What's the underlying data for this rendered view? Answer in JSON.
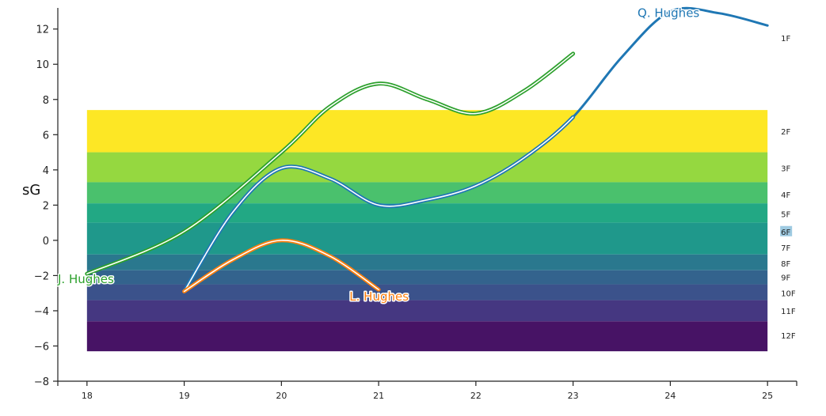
{
  "chart_data": {
    "type": "line",
    "title": "",
    "xlabel": "",
    "ylabel": "sG",
    "xlim": [
      17.7,
      25.3
    ],
    "ylim": [
      -8,
      13.2
    ],
    "xticks": [
      18,
      19,
      20,
      21,
      22,
      23,
      24,
      25
    ],
    "yticks": [
      -8,
      -6,
      -4,
      -2,
      0,
      2,
      4,
      6,
      8,
      10,
      12
    ],
    "grid": false,
    "bands": {
      "x_range": [
        18,
        25
      ],
      "items": [
        {
          "label": "1F",
          "y0": null,
          "y1": null,
          "label_y": 11.5,
          "color": null
        },
        {
          "label": "2F",
          "y0": 5.0,
          "y1": 7.4,
          "label_y": 6.2,
          "color": "#fde725"
        },
        {
          "label": "3F",
          "y0": 3.3,
          "y1": 5.0,
          "label_y": 4.1,
          "color": "#95d840"
        },
        {
          "label": "4F",
          "y0": 2.1,
          "y1": 3.3,
          "label_y": 2.6,
          "color": "#4ac16d"
        },
        {
          "label": "5F",
          "y0": 1.0,
          "y1": 2.1,
          "label_y": 1.5,
          "color": "#22a884"
        },
        {
          "label": "6F",
          "y0": -0.8,
          "y1": 1.0,
          "label_y": 0.5,
          "color": "#1f988b",
          "highlight": "#9ecae1"
        },
        {
          "label": "7F",
          "y0": -0.8,
          "y1": -0.8,
          "label_y": -0.4,
          "color": "#23888e"
        },
        {
          "label": "8F",
          "y0": -1.7,
          "y1": -0.8,
          "label_y": -1.3,
          "color": "#2a788e"
        },
        {
          "label": "9F",
          "y0": -2.5,
          "y1": -1.7,
          "label_y": -2.1,
          "color": "#33638d"
        },
        {
          "label": "10F",
          "y0": -3.4,
          "y1": -2.5,
          "label_y": -3.0,
          "color": "#3b528b"
        },
        {
          "label": "11F",
          "y0": -4.6,
          "y1": -3.4,
          "label_y": -4.0,
          "color": "#453781"
        },
        {
          "label": "12F",
          "y0": -6.3,
          "y1": -4.6,
          "label_y": -5.4,
          "color": "#471365"
        }
      ]
    },
    "series": [
      {
        "name": "J. Hughes",
        "color": "#2ca02c",
        "outline": true,
        "x": [
          18,
          19,
          20,
          20.5,
          21,
          21.5,
          22,
          22.5,
          23
        ],
        "y": [
          -1.9,
          0.5,
          5.0,
          7.6,
          8.9,
          8.0,
          7.2,
          8.5,
          10.6
        ],
        "label": "J. Hughes",
        "label_x": 17.7,
        "label_y": -2.2,
        "label_anchor": "start"
      },
      {
        "name": "Q. Hughes",
        "color": "#1f77b4",
        "outline_until_x": 23,
        "x": [
          19,
          19.5,
          20,
          20.5,
          21,
          21.5,
          22,
          22.5,
          23,
          23.5,
          24,
          24.5,
          25
        ],
        "y": [
          -2.9,
          1.6,
          4.1,
          3.5,
          2.0,
          2.3,
          3.1,
          4.7,
          7.0,
          10.4,
          13.0,
          12.9,
          12.2
        ],
        "label": "Q. Hughes",
        "label_x": 24.3,
        "label_y": 12.9,
        "label_anchor": "end"
      },
      {
        "name": "L. Hughes",
        "color": "#ff7f0e",
        "outline": true,
        "x": [
          19,
          19.5,
          20,
          20.5,
          21
        ],
        "y": [
          -2.9,
          -1.1,
          0.0,
          -0.9,
          -2.8
        ],
        "label": "L. Hughes",
        "label_x": 20.7,
        "label_y": -3.2,
        "label_anchor": "start"
      }
    ]
  }
}
